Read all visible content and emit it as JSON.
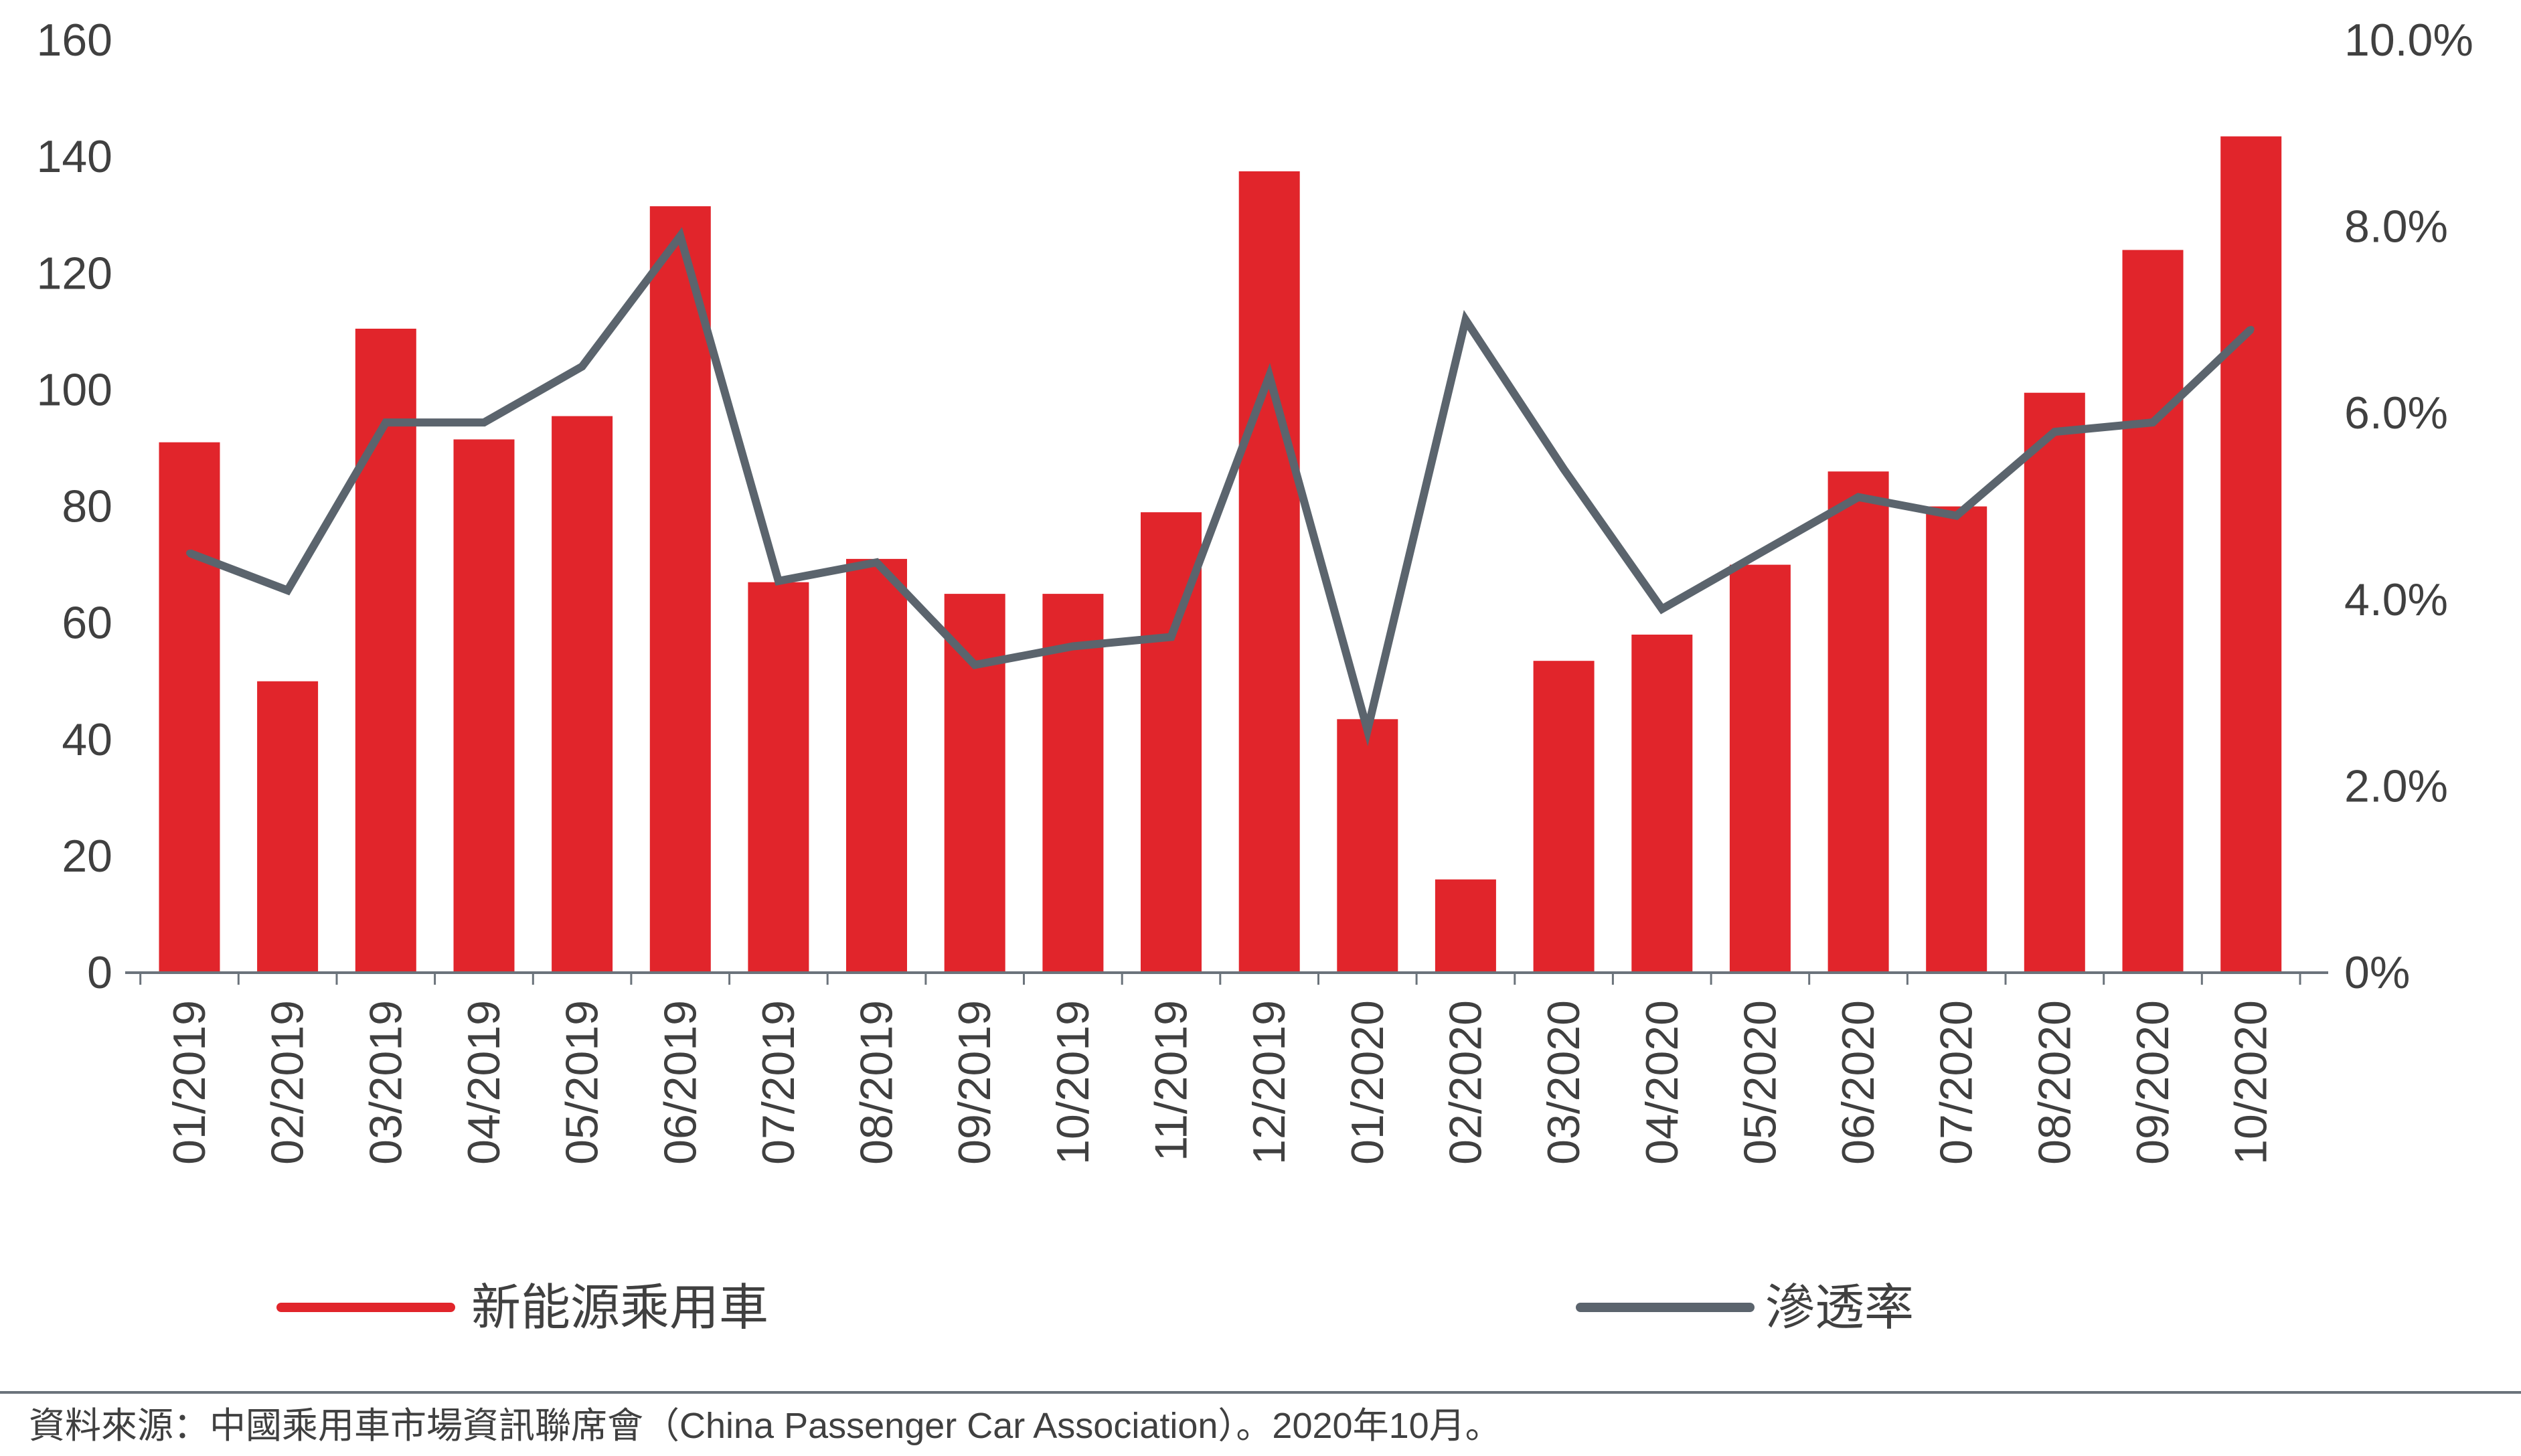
{
  "chart_data": {
    "type": "bar",
    "categories": [
      "01/2019",
      "02/2019",
      "03/2019",
      "04/2019",
      "05/2019",
      "06/2019",
      "07/2019",
      "08/2019",
      "09/2019",
      "10/2019",
      "11/2019",
      "12/2019",
      "01/2020",
      "02/2020",
      "03/2020",
      "04/2020",
      "05/2020",
      "06/2020",
      "07/2020",
      "08/2020",
      "09/2020",
      "10/2020"
    ],
    "series": [
      {
        "name": "新能源乘用車",
        "type": "bar",
        "axis": "left",
        "color": "#E1252B",
        "values": [
          91,
          50,
          110.5,
          91.5,
          95.5,
          131.5,
          67,
          71,
          65,
          65,
          79,
          137.5,
          43.5,
          16,
          53.5,
          58,
          70,
          86,
          80,
          99.5,
          124,
          143.5
        ]
      },
      {
        "name": "滲透率",
        "type": "line",
        "axis": "right",
        "unit": "%",
        "color": "#5B646D",
        "values": [
          4.5,
          4.1,
          5.9,
          5.9,
          6.5,
          7.9,
          4.2,
          4.4,
          3.3,
          3.5,
          3.6,
          6.4,
          2.6,
          7.0,
          5.4,
          3.9,
          4.5,
          5.1,
          4.9,
          5.8,
          5.9,
          6.9
        ]
      }
    ],
    "y_left": {
      "ylim": [
        0,
        160
      ],
      "ticks": [
        0,
        20,
        40,
        60,
        80,
        100,
        120,
        140,
        160
      ],
      "tick_labels": [
        "0",
        "20",
        "40",
        "60",
        "80",
        "100",
        "120",
        "140",
        "160"
      ]
    },
    "y_right": {
      "ylim": [
        0,
        10
      ],
      "ticks": [
        0,
        2,
        4,
        6,
        8,
        10
      ],
      "tick_labels": [
        "0%",
        "2.0%",
        "4.0%",
        "6.0%",
        "8.0%",
        "10.0%"
      ]
    },
    "grid": false,
    "legend": "bottom",
    "axis_color": "#6B737B"
  },
  "source_note": "資料來源：中國乘用車市場資訊聯席會（China Passenger Car Association）。2020年10月。"
}
